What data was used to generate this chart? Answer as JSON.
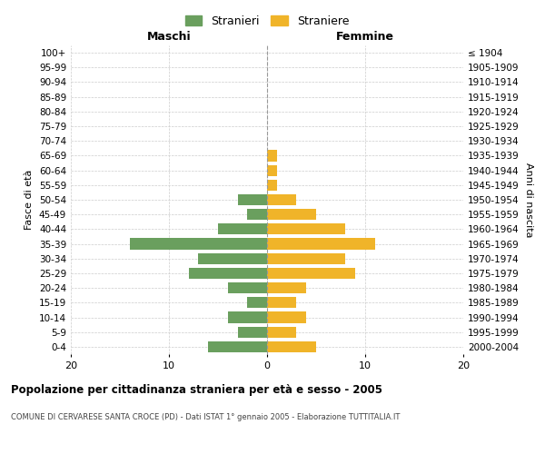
{
  "age_groups": [
    "0-4",
    "5-9",
    "10-14",
    "15-19",
    "20-24",
    "25-29",
    "30-34",
    "35-39",
    "40-44",
    "45-49",
    "50-54",
    "55-59",
    "60-64",
    "65-69",
    "70-74",
    "75-79",
    "80-84",
    "85-89",
    "90-94",
    "95-99",
    "100+"
  ],
  "birth_years": [
    "2000-2004",
    "1995-1999",
    "1990-1994",
    "1985-1989",
    "1980-1984",
    "1975-1979",
    "1970-1974",
    "1965-1969",
    "1960-1964",
    "1955-1959",
    "1950-1954",
    "1945-1949",
    "1940-1944",
    "1935-1939",
    "1930-1934",
    "1925-1929",
    "1920-1924",
    "1915-1919",
    "1910-1914",
    "1905-1909",
    "≤ 1904"
  ],
  "maschi": [
    6,
    3,
    4,
    2,
    4,
    8,
    7,
    14,
    5,
    2,
    3,
    0,
    0,
    0,
    0,
    0,
    0,
    0,
    0,
    0,
    0
  ],
  "femmine": [
    5,
    3,
    4,
    3,
    4,
    9,
    8,
    11,
    8,
    5,
    3,
    1,
    1,
    1,
    0,
    0,
    0,
    0,
    0,
    0,
    0
  ],
  "maschi_color": "#6a9f5e",
  "femmine_color": "#f0b429",
  "title": "Popolazione per cittadinanza straniera per età e sesso - 2005",
  "subtitle": "COMUNE DI CERVARESE SANTA CROCE (PD) - Dati ISTAT 1° gennaio 2005 - Elaborazione TUTTITALIA.IT",
  "xlabel_left": "Maschi",
  "xlabel_right": "Femmine",
  "ylabel_left": "Fasce di età",
  "ylabel_right": "Anni di nascita",
  "legend_maschi": "Stranieri",
  "legend_femmine": "Straniere",
  "xlim": 20,
  "background_color": "#ffffff",
  "grid_color": "#cccccc"
}
